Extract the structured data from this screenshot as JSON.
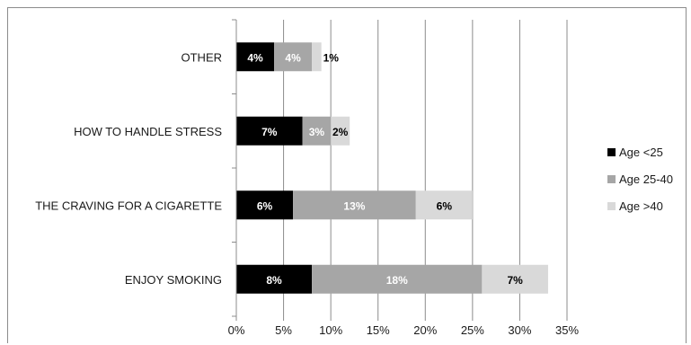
{
  "chart_data": {
    "type": "bar",
    "orientation": "horizontal",
    "stacked": true,
    "categories": [
      "ENJOY SMOKING",
      "THE CRAVING FOR A CIGARETTE",
      "HOW TO HANDLE STRESS",
      "OTHER"
    ],
    "series": [
      {
        "name": "Age <25",
        "values": [
          8,
          6,
          7,
          4
        ],
        "labels": [
          "8%",
          "6%",
          "7%",
          "4%"
        ],
        "color": "#000000",
        "label_color": "#ffffff"
      },
      {
        "name": "Age 25-40",
        "values": [
          18,
          13,
          3,
          4
        ],
        "labels": [
          "18%",
          "13%",
          "3%",
          "4%"
        ],
        "color": "#a6a6a6",
        "label_color": "#ffffff"
      },
      {
        "name": "Age >40",
        "values": [
          7,
          6,
          2,
          1
        ],
        "labels": [
          "7%",
          "6%",
          "2%",
          "1%"
        ],
        "color": "#d9d9d9",
        "label_color": "#000000"
      }
    ],
    "xlim": [
      0,
      35
    ],
    "xticks": [
      "0%",
      "5%",
      "10%",
      "15%",
      "20%",
      "25%",
      "30%",
      "35%"
    ],
    "grid": true,
    "legend_position": "right"
  }
}
